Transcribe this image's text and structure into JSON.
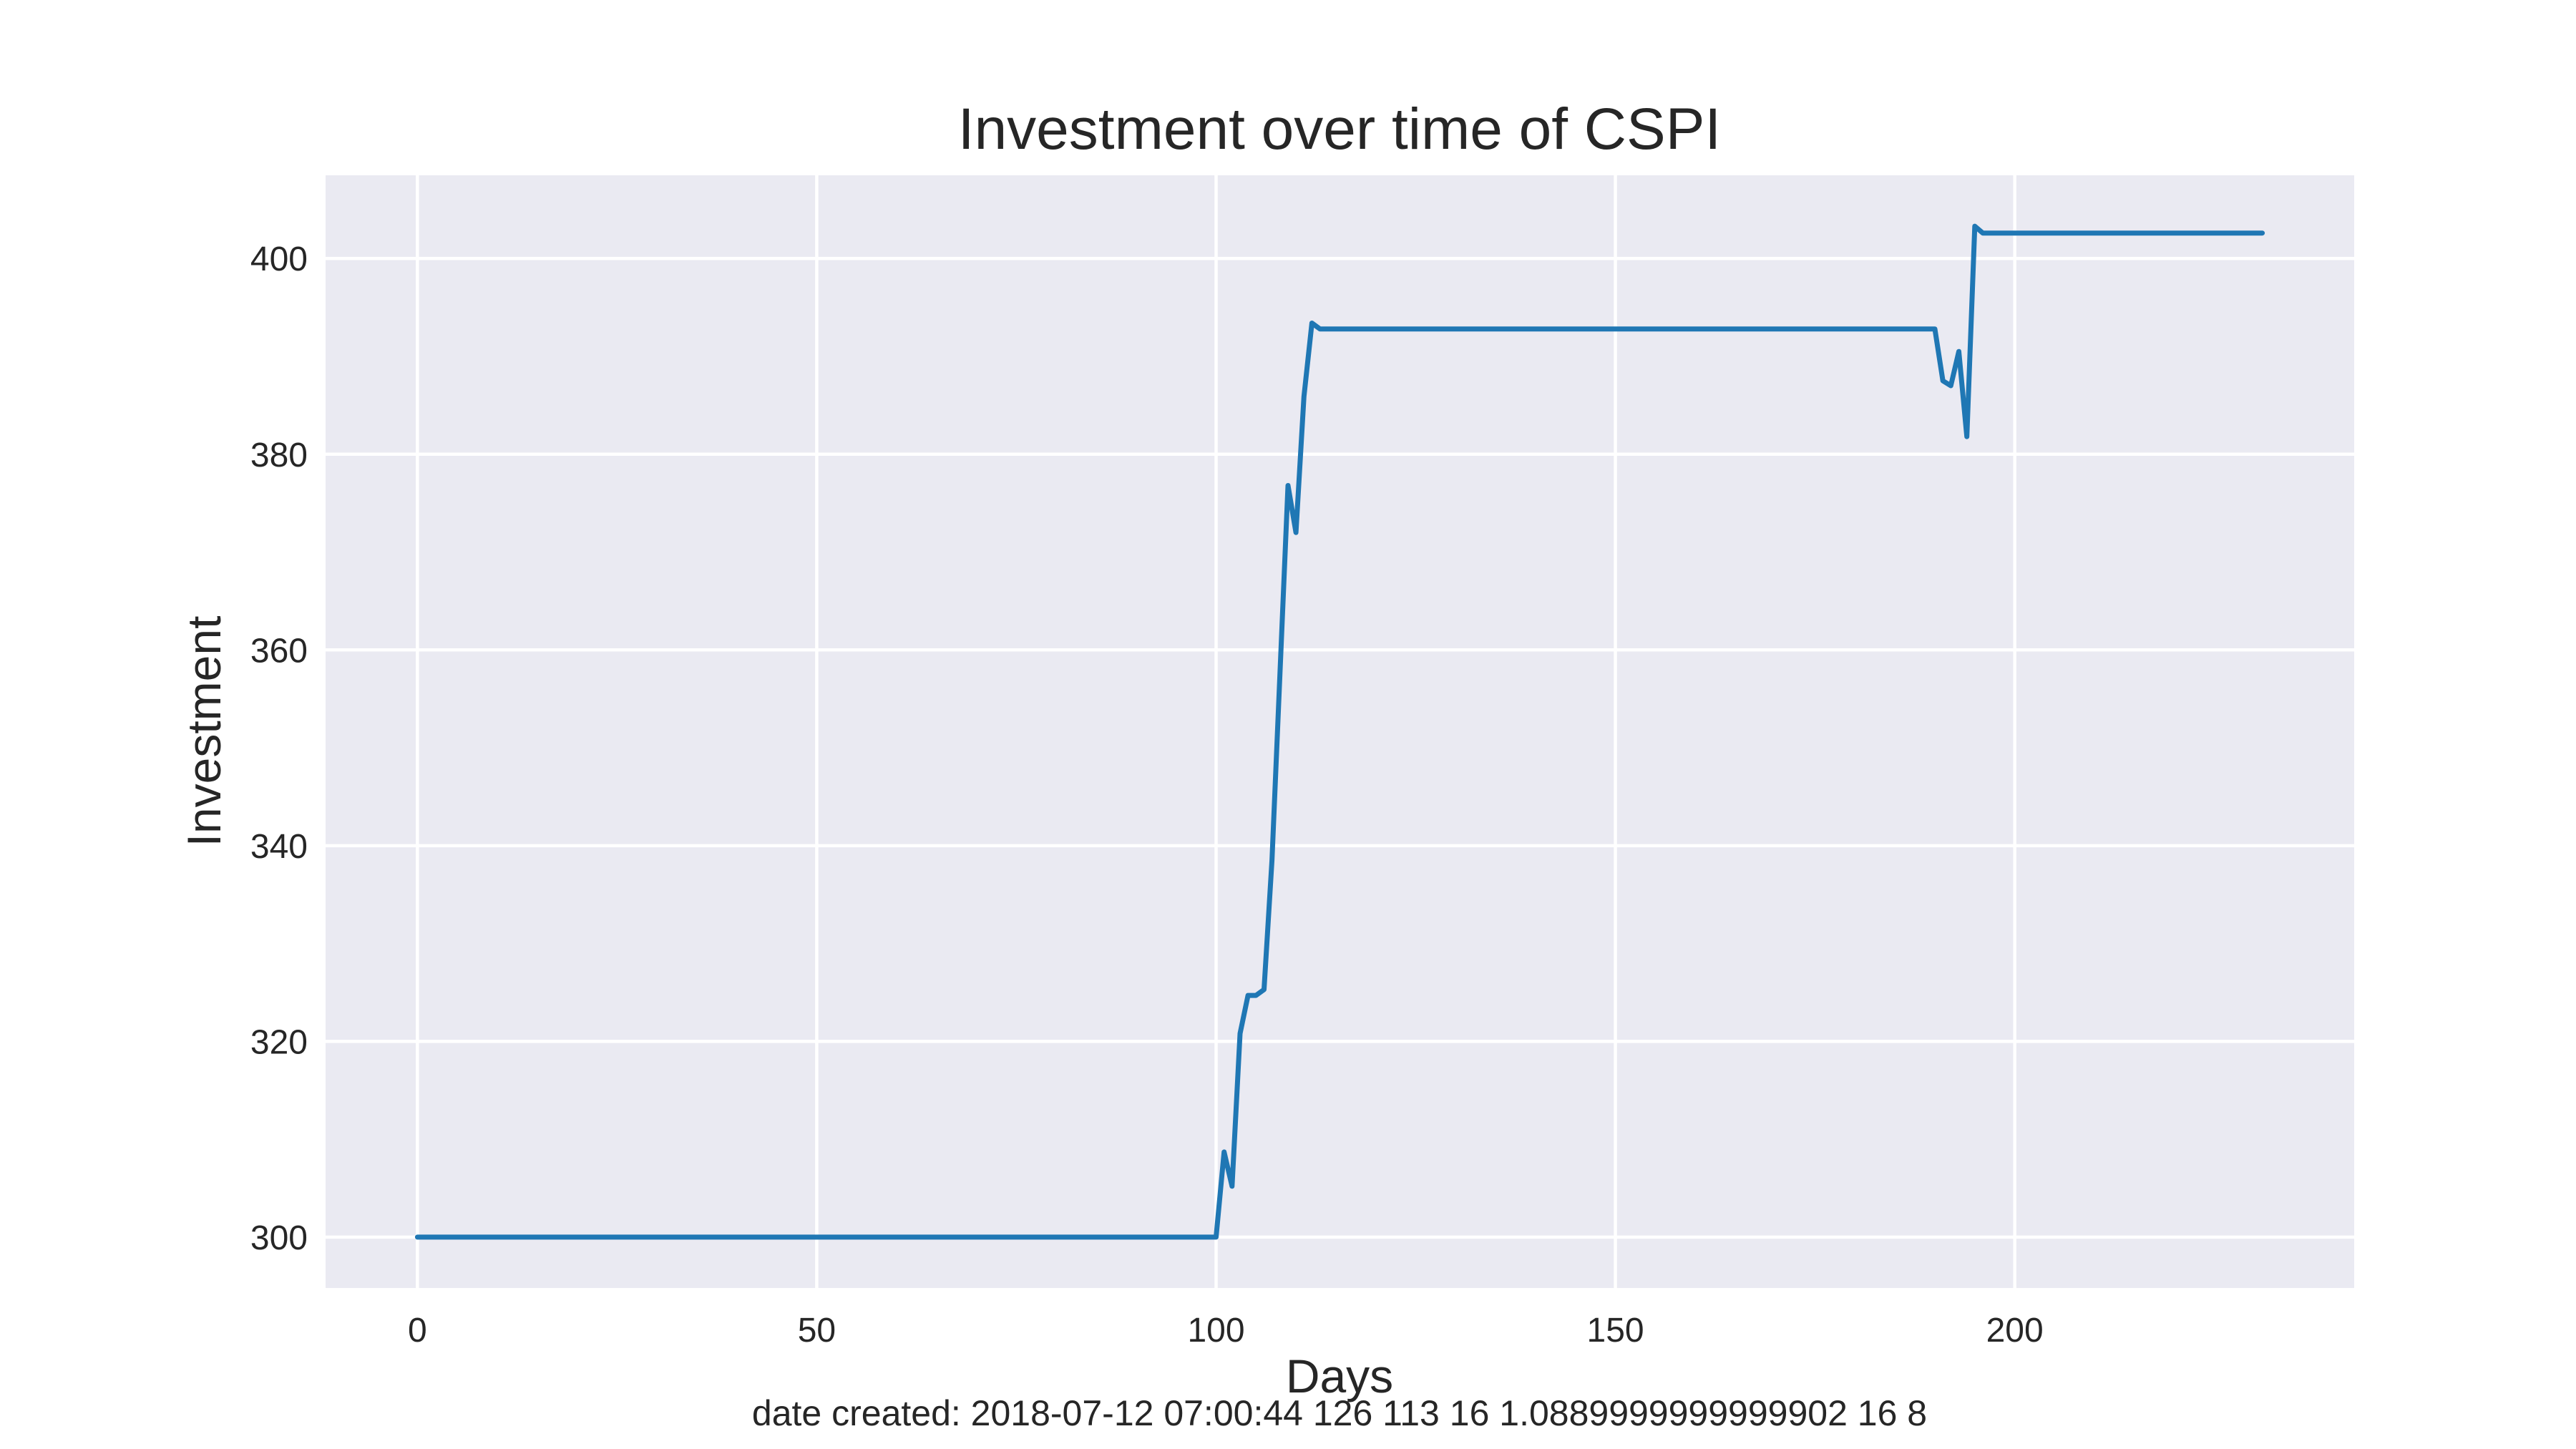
{
  "colors": {
    "plot_background": "#eaeaf2",
    "grid": "#ffffff",
    "series": "#1f77b4"
  },
  "footer": {
    "text": "date created: 2018-07-12 07:00:44 126 113 16 1.0889999999999902 16 8"
  },
  "chart_data": {
    "type": "line",
    "title": "Investment over time of CSPI",
    "xlabel": "Days",
    "ylabel": "Investment",
    "xlim": [
      -11.5,
      242.5
    ],
    "ylim": [
      294.8,
      408.5
    ],
    "xticks": [
      0,
      50,
      100,
      150,
      200
    ],
    "yticks": [
      300,
      320,
      340,
      360,
      380,
      400
    ],
    "grid": true,
    "series": [
      {
        "x": [
          0,
          100,
          101,
          102,
          103,
          104,
          105,
          106,
          107,
          109,
          110,
          111,
          112,
          113,
          190,
          191,
          192,
          193,
          194,
          195,
          196,
          231
        ],
        "values": [
          300,
          300,
          308.7,
          305.2,
          320.8,
          324.7,
          324.7,
          325.3,
          338.5,
          376.8,
          372,
          385.9,
          393.4,
          392.8,
          392.8,
          387.5,
          387.0,
          390.5,
          381.8,
          403.3,
          402.6,
          402.6
        ]
      }
    ]
  }
}
